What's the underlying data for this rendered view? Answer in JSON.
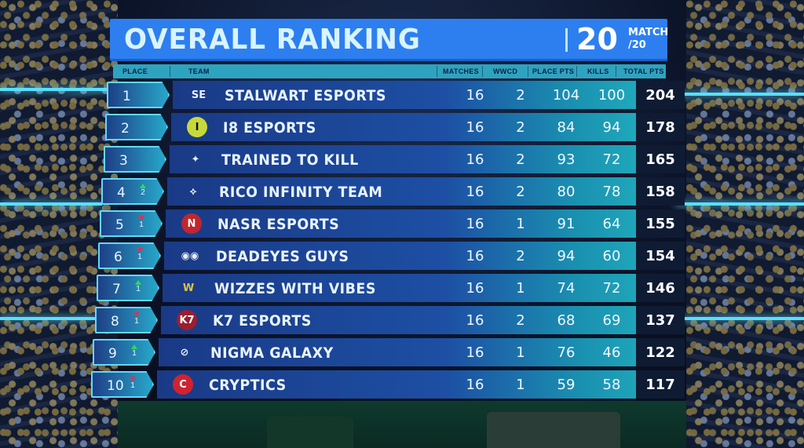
{
  "header": {
    "title": "OVERALL RANKING",
    "match_number": "20",
    "match_label_top": "MATCH",
    "match_label_bottom": "/20"
  },
  "columns": {
    "place": "PLACE",
    "team": "TEAM",
    "matches": "MATCHES",
    "wwcd": "WWCD",
    "place_pts": "PLACE PTS",
    "kills": "KILLS",
    "total_pts": "TOTAL PTS"
  },
  "rows": [
    {
      "place": "1",
      "trend": "",
      "trend_val": "",
      "team": "STALWART ESPORTS",
      "logo": "stalwart-logo",
      "matches": "16",
      "wwcd": "2",
      "place_pts": "104",
      "kills": "100",
      "total": "204"
    },
    {
      "place": "2",
      "trend": "",
      "trend_val": "",
      "team": "I8 ESPORTS",
      "logo": "i8-logo",
      "matches": "16",
      "wwcd": "2",
      "place_pts": "84",
      "kills": "94",
      "total": "178"
    },
    {
      "place": "3",
      "trend": "",
      "trend_val": "",
      "team": "TRAINED TO KILL",
      "logo": "ttk-logo",
      "matches": "16",
      "wwcd": "2",
      "place_pts": "93",
      "kills": "72",
      "total": "165"
    },
    {
      "place": "4",
      "trend": "up",
      "trend_val": "2",
      "team": "RICO INFINITY TEAM",
      "logo": "rico-logo",
      "matches": "16",
      "wwcd": "2",
      "place_pts": "80",
      "kills": "78",
      "total": "158"
    },
    {
      "place": "5",
      "trend": "down",
      "trend_val": "1",
      "team": "NASR ESPORTS",
      "logo": "nasr-logo",
      "matches": "16",
      "wwcd": "1",
      "place_pts": "91",
      "kills": "64",
      "total": "155"
    },
    {
      "place": "6",
      "trend": "down",
      "trend_val": "1",
      "team": "DEADEYES GUYS",
      "logo": "deadeyes-logo",
      "matches": "16",
      "wwcd": "2",
      "place_pts": "94",
      "kills": "60",
      "total": "154"
    },
    {
      "place": "7",
      "trend": "up",
      "trend_val": "1",
      "team": "WIZZES WITH VIBES",
      "logo": "wizzes-logo",
      "matches": "16",
      "wwcd": "1",
      "place_pts": "74",
      "kills": "72",
      "total": "146"
    },
    {
      "place": "8",
      "trend": "down",
      "trend_val": "1",
      "team": "K7 ESPORTS",
      "logo": "k7-logo",
      "matches": "16",
      "wwcd": "2",
      "place_pts": "68",
      "kills": "69",
      "total": "137"
    },
    {
      "place": "9",
      "trend": "up",
      "trend_val": "1",
      "team": "NIGMA GALAXY",
      "logo": "nigma-logo",
      "matches": "16",
      "wwcd": "1",
      "place_pts": "76",
      "kills": "46",
      "total": "122"
    },
    {
      "place": "10",
      "trend": "down",
      "trend_val": "1",
      "team": "CRYPTICS",
      "logo": "cryptics-logo",
      "matches": "16",
      "wwcd": "1",
      "place_pts": "59",
      "kills": "58",
      "total": "117"
    }
  ],
  "colors": {
    "title_bar": "#2d7ff0",
    "header_row": "#2ea3c0",
    "up": "#2fd95a",
    "down": "#e0324a",
    "total_box": "#0f1b33"
  }
}
